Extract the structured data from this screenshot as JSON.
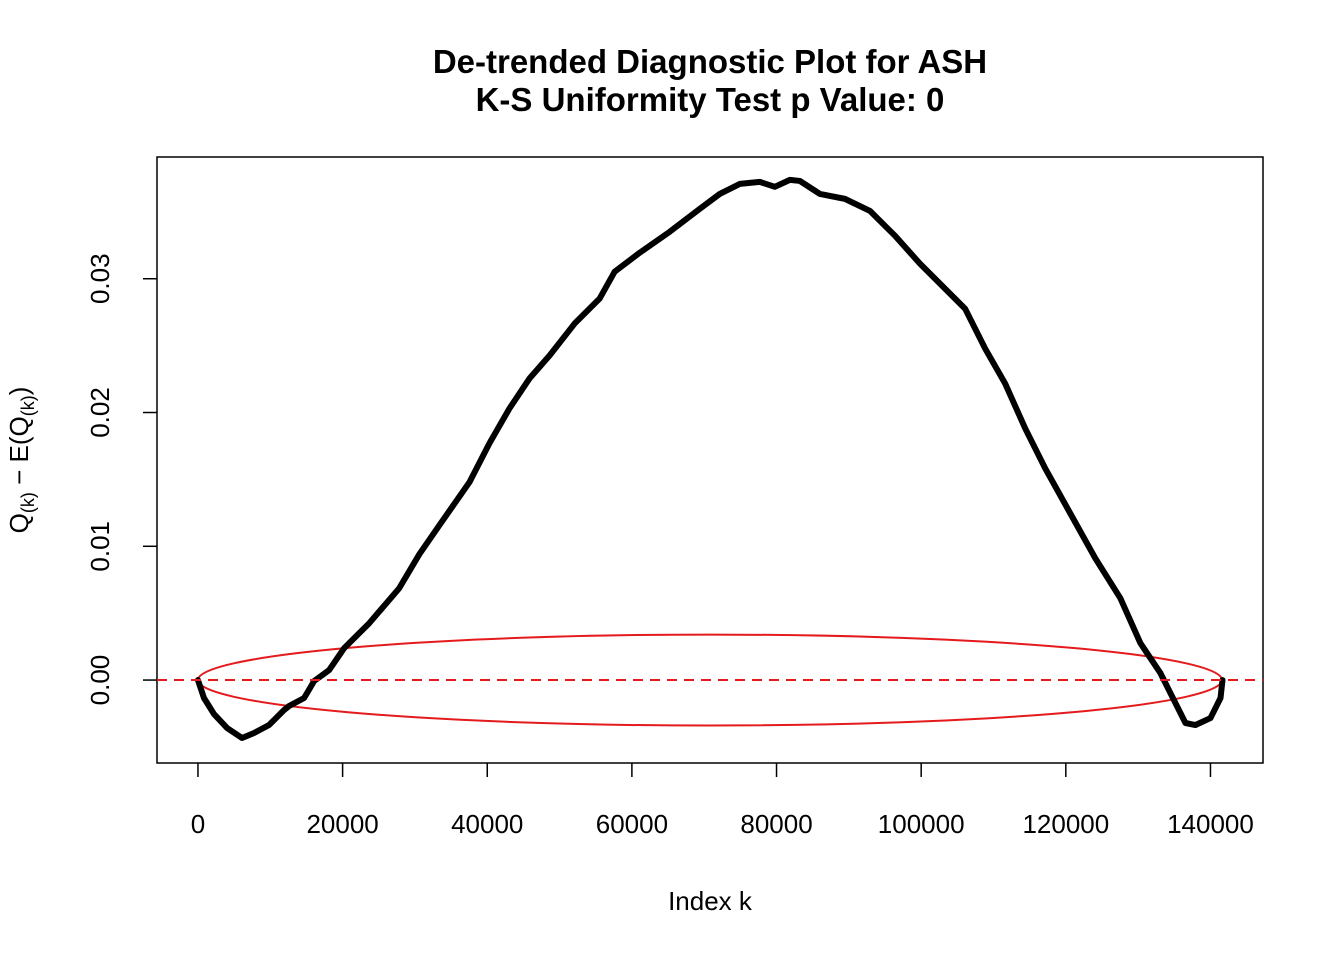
{
  "chart_data": {
    "type": "line",
    "title": [
      "De-trended Diagnostic Plot for ASH",
      "K-S Uniformity Test p Value: 0"
    ],
    "xlabel": "Index k",
    "ylabel": [
      "Q",
      "(k)",
      " − E(Q",
      "(k)",
      ")"
    ],
    "x": [
      0,
      831,
      2216,
      4016,
      6093,
      7755,
      9832,
      11909,
      12602,
      14679,
      16064,
      18141,
      20218,
      23680,
      27834,
      30604,
      33374,
      37528,
      40298,
      43067,
      45837,
      48606,
      52068,
      55530,
      57608,
      61070,
      65224,
      69378,
      72148,
      74918,
      77687,
      79764,
      81842,
      83226,
      85996,
      89458,
      92920,
      96382,
      99844,
      103306,
      106076,
      108845,
      111615,
      114384,
      117154,
      120616,
      124078,
      127540,
      130310,
      133079,
      135156,
      136541,
      137926,
      140003,
      141388,
      141665
    ],
    "series": [
      {
        "color": "#000000",
        "values": [
          0,
          -0.00134,
          -0.00254,
          -0.00358,
          -0.00433,
          -0.00396,
          -0.00336,
          -0.00224,
          -0.00194,
          -0.00134,
          -7e-05,
          0.00075,
          0.00239,
          0.00425,
          0.00687,
          0.0094,
          0.01157,
          0.01478,
          0.01769,
          0.0203,
          0.02254,
          0.02425,
          0.02664,
          0.02851,
          0.03052,
          0.03194,
          0.03351,
          0.03522,
          0.03634,
          0.03709,
          0.03724,
          0.03687,
          0.03739,
          0.03731,
          0.03634,
          0.03597,
          0.03507,
          0.03321,
          0.03112,
          0.02925,
          0.02776,
          0.02478,
          0.02216,
          0.01881,
          0.01582,
          0.01246,
          0.0091,
          0.00612,
          0.00276,
          0.00052,
          -0.00172,
          -0.00321,
          -0.00336,
          -0.00284,
          -0.00134,
          0
        ]
      }
    ],
    "reference_line": {
      "y": 0,
      "color": "#e41a1c"
    },
    "ellipse": {
      "center": [
        70800,
        0
      ],
      "radii": [
        70800,
        0.0034
      ],
      "color": "#e41a1c"
    },
    "xlim": [
      -5664,
      147264
    ],
    "ylim": [
      -0.0062,
      0.0391
    ],
    "xticks": [
      0,
      20000,
      40000,
      60000,
      80000,
      100000,
      120000,
      140000
    ],
    "yticks": [
      {
        "value": 0,
        "label": "0.00"
      },
      0.01,
      0.02,
      0.03
    ]
  }
}
